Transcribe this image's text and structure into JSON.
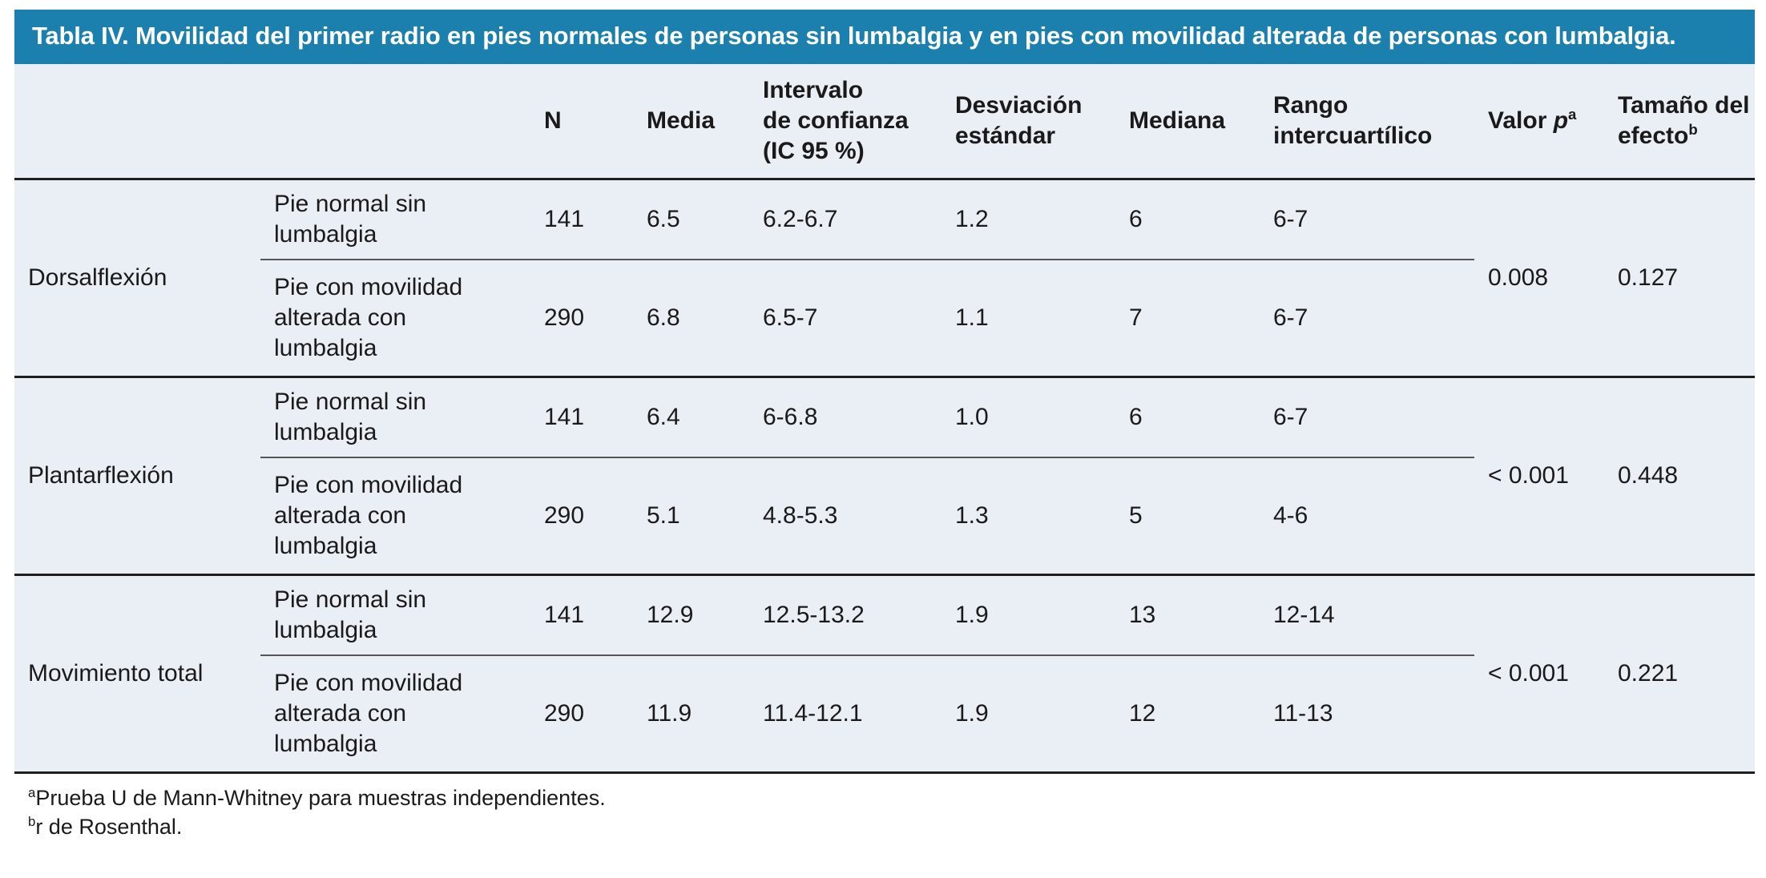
{
  "colors": {
    "header_bg": "#1b80ad",
    "header_text": "#ffffff",
    "body_bg": "#eaeef5",
    "text": "#1a1a1a",
    "rule_dark": "#1f1f1f",
    "rule_mid": "#555555",
    "page_bg": "#ffffff"
  },
  "title": "Tabla IV. Movilidad del primer radio en pies normales de personas sin lumbalgia y en pies con movilidad alterada de personas con lumbalgia.",
  "table": {
    "headers": {
      "n": "N",
      "media": "Media",
      "ic_lines": {
        "l1": "Intervalo",
        "l2": "de confianza",
        "l3": "(IC 95 %)"
      },
      "desviacion": "Desviación estándar",
      "mediana": "Mediana",
      "rango": "Rango intercuartílico",
      "valor_p": {
        "text": "Valor ",
        "italic": "p",
        "sup": "a"
      },
      "tamano": {
        "text": "Tamaño del efecto",
        "sup": "b"
      }
    },
    "groups": [
      {
        "name": "Dorsalflexión",
        "p_value": "0.008",
        "effect": "0.127",
        "rows": [
          {
            "label": "Pie normal sin lumbalgia",
            "n": "141",
            "media": "6.5",
            "ic": "6.2-6.7",
            "sd": "1.2",
            "mediana": "6",
            "riq": "6-7"
          },
          {
            "label": "Pie con movilidad alterada con lumbalgia",
            "n": "290",
            "media": "6.8",
            "ic": "6.5-7",
            "sd": "1.1",
            "mediana": "7",
            "riq": "6-7"
          }
        ]
      },
      {
        "name": "Plantarflexión",
        "p_value": "< 0.001",
        "effect": "0.448",
        "rows": [
          {
            "label": "Pie normal sin lumbalgia",
            "n": "141",
            "media": "6.4",
            "ic": "6-6.8",
            "sd": "1.0",
            "mediana": "6",
            "riq": "6-7"
          },
          {
            "label": "Pie con movilidad alterada con lumbalgia",
            "n": "290",
            "media": "5.1",
            "ic": "4.8-5.3",
            "sd": "1.3",
            "mediana": "5",
            "riq": "4-6"
          }
        ]
      },
      {
        "name": "Movimiento total",
        "p_value": "< 0.001",
        "effect": "0.221",
        "rows": [
          {
            "label": "Pie normal sin lumbalgia",
            "n": "141",
            "media": "12.9",
            "ic": "12.5-13.2",
            "sd": "1.9",
            "mediana": "13",
            "riq": "12-14"
          },
          {
            "label": "Pie con movilidad alterada con lumbalgia",
            "n": "290",
            "media": "11.9",
            "ic": "11.4-12.1",
            "sd": "1.9",
            "mediana": "12",
            "riq": "11-13"
          }
        ]
      }
    ]
  },
  "footnotes": [
    {
      "marker": "a",
      "text": "Prueba U de Mann-Whitney para muestras independientes."
    },
    {
      "marker": "b",
      "text": "r de Rosenthal."
    }
  ]
}
